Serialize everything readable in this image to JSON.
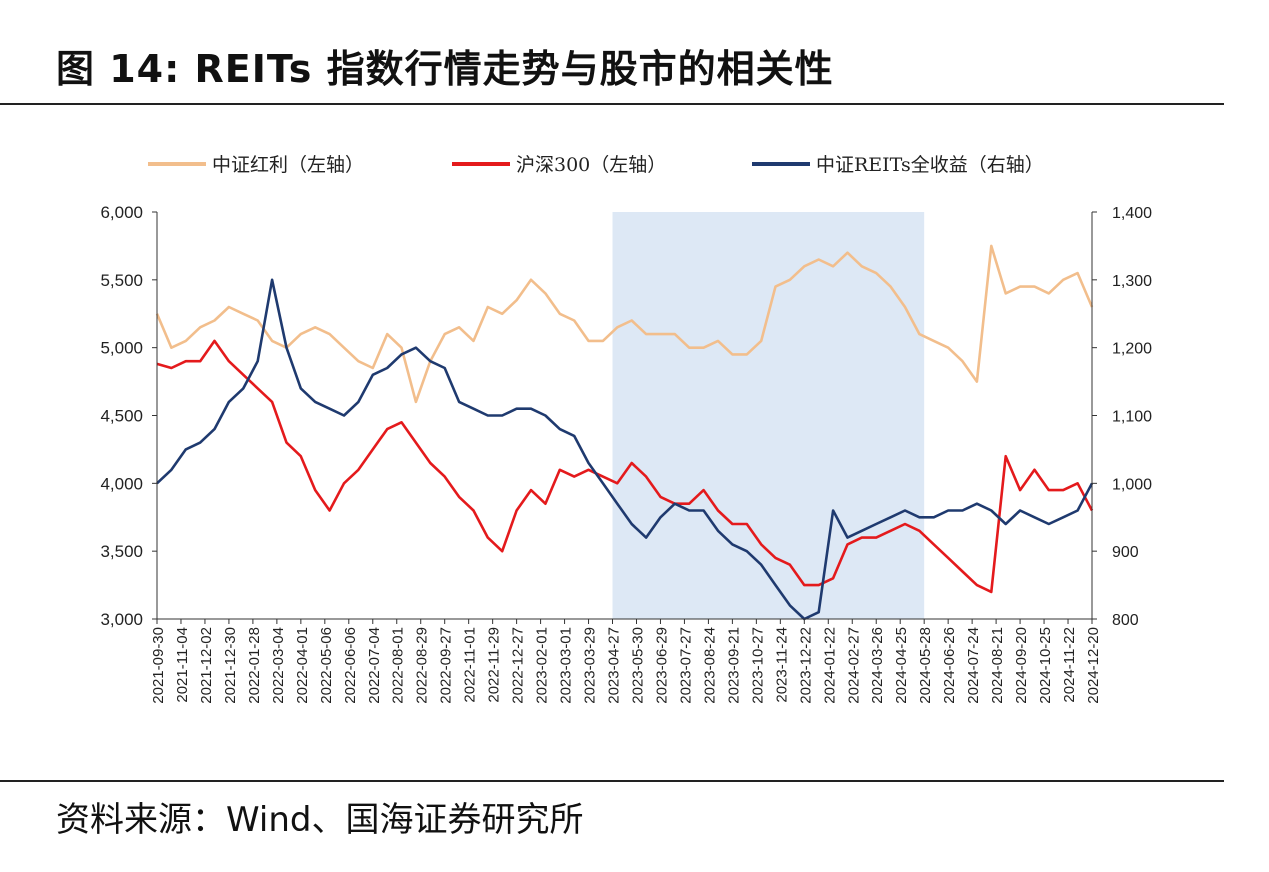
{
  "title": "图 14:  REITs 指数行情走势与股市的相关性",
  "source": "资料来源：Wind、国海证券研究所",
  "chart_data": {
    "type": "line",
    "title": "",
    "xlabel": "",
    "ylabel": "",
    "ylim": [
      3000,
      6000
    ],
    "y2lim": [
      800,
      1400
    ],
    "y_ticks": [
      "3,000",
      "3,500",
      "4,000",
      "4,500",
      "5,000",
      "5,500",
      "6,000"
    ],
    "y2_ticks": [
      "800",
      "900",
      "1,000",
      "1,100",
      "1,200",
      "1,300",
      "1,400"
    ],
    "x_ticks": [
      "2021-09-30",
      "2021-11-04",
      "2021-12-02",
      "2021-12-30",
      "2022-01-28",
      "2022-03-04",
      "2022-04-01",
      "2022-05-06",
      "2022-06-06",
      "2022-07-04",
      "2022-08-01",
      "2022-08-29",
      "2022-09-27",
      "2022-11-01",
      "2022-11-29",
      "2022-12-27",
      "2023-02-01",
      "2023-03-01",
      "2023-03-29",
      "2023-04-27",
      "2023-05-30",
      "2023-06-29",
      "2023-07-27",
      "2023-08-24",
      "2023-09-21",
      "2023-10-27",
      "2023-11-24",
      "2023-12-22",
      "2024-01-22",
      "2024-02-27",
      "2024-03-26",
      "2024-04-25",
      "2024-05-28",
      "2024-06-26",
      "2024-07-24",
      "2024-08-21",
      "2024-09-20",
      "2024-10-25",
      "2024-11-22",
      "2024-12-20"
    ],
    "shaded_period": [
      "2023-04-27",
      "2024-05-28"
    ],
    "legend_position": "top",
    "grid": false,
    "series": [
      {
        "name": "中证红利（左轴）",
        "axis": "left",
        "color": "#F2BE8C",
        "values": [
          5250,
          5000,
          5050,
          5150,
          5200,
          5300,
          5250,
          5200,
          5050,
          5000,
          5100,
          5150,
          5100,
          5000,
          4900,
          4850,
          5100,
          5000,
          4600,
          4900,
          5100,
          5150,
          5050,
          5300,
          5250,
          5350,
          5500,
          5400,
          5250,
          5200,
          5050,
          5050,
          5150,
          5200,
          5100,
          5100,
          5100,
          5000,
          5000,
          5050,
          4950,
          4950,
          5050,
          5450,
          5500,
          5600,
          5650,
          5600,
          5700,
          5600,
          5550,
          5450,
          5300,
          5100,
          5050,
          5000,
          4900,
          4750,
          5750,
          5400,
          5450,
          5450,
          5400,
          5500,
          5550,
          5300
        ]
      },
      {
        "name": "沪深300（左轴）",
        "axis": "left",
        "color": "#E41A1C",
        "values": [
          4880,
          4850,
          4900,
          4900,
          5050,
          4900,
          4800,
          4700,
          4600,
          4300,
          4200,
          3950,
          3800,
          4000,
          4100,
          4250,
          4400,
          4450,
          4300,
          4150,
          4050,
          3900,
          3800,
          3600,
          3500,
          3800,
          3950,
          3850,
          4100,
          4050,
          4100,
          4050,
          4000,
          4150,
          4050,
          3900,
          3850,
          3850,
          3950,
          3800,
          3700,
          3700,
          3550,
          3450,
          3400,
          3250,
          3250,
          3300,
          3550,
          3600,
          3600,
          3650,
          3700,
          3650,
          3550,
          3450,
          3350,
          3250,
          3200,
          4200,
          3950,
          4100,
          3950,
          3950,
          4000,
          3800
        ]
      },
      {
        "name": "中证REITs全收益（右轴）",
        "axis": "right",
        "color": "#1F3A6F",
        "values": [
          1000,
          1020,
          1050,
          1060,
          1080,
          1120,
          1140,
          1180,
          1300,
          1200,
          1140,
          1120,
          1110,
          1100,
          1120,
          1160,
          1170,
          1190,
          1200,
          1180,
          1170,
          1120,
          1110,
          1100,
          1100,
          1110,
          1110,
          1100,
          1080,
          1070,
          1030,
          1000,
          970,
          940,
          920,
          950,
          970,
          960,
          960,
          930,
          910,
          900,
          880,
          850,
          820,
          800,
          810,
          960,
          920,
          930,
          940,
          950,
          960,
          950,
          950,
          960,
          960,
          970,
          960,
          940,
          960,
          950,
          940,
          950,
          960,
          1000
        ]
      }
    ]
  }
}
